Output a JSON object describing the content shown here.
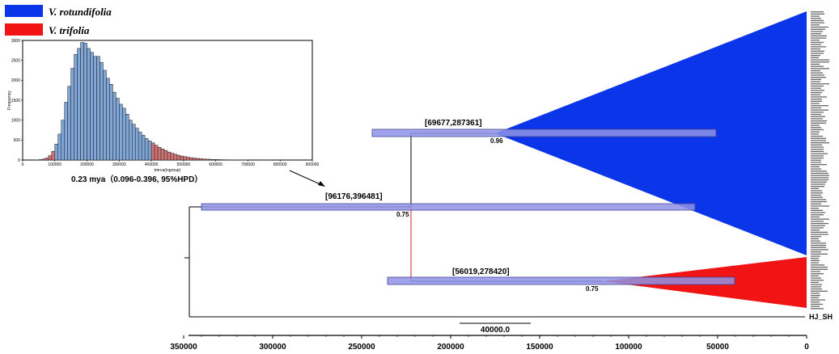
{
  "legend": [
    {
      "label": "V. rotundifolia",
      "color": "#0b35e8"
    },
    {
      "label": "V. trifolia",
      "color": "#f01414"
    }
  ],
  "inset": {
    "ylabel": "Frequency",
    "xlabel": "tmrca(ingroup)",
    "y_ticks": [
      "0",
      "500",
      "1000",
      "1500",
      "2000",
      "2500",
      "3000"
    ],
    "x_ticks": [
      "0",
      "100000",
      "200000",
      "300000",
      "400000",
      "500000",
      "600000",
      "700000",
      "800000",
      "900000"
    ],
    "caption": "0.23 mya（0.096-0.396, 95%HPD）",
    "colors": {
      "in_hpd": "#7fa6d6",
      "out_hpd": "#d27474"
    }
  },
  "chart_data": {
    "type": "bar",
    "xlabel": "tmrca(ingroup)",
    "ylabel": "Frequency",
    "xlim": [
      0,
      900000
    ],
    "ylim": [
      0,
      3000
    ],
    "bin_width": 10000,
    "hpd_interval": [
      96000,
      396000
    ],
    "bins": [
      [
        40000,
        5
      ],
      [
        50000,
        10
      ],
      [
        60000,
        25
      ],
      [
        70000,
        50
      ],
      [
        80000,
        110
      ],
      [
        90000,
        220
      ],
      [
        100000,
        400
      ],
      [
        110000,
        650
      ],
      [
        120000,
        1000
      ],
      [
        130000,
        1450
      ],
      [
        140000,
        1850
      ],
      [
        150000,
        2300
      ],
      [
        160000,
        2650
      ],
      [
        170000,
        2800
      ],
      [
        180000,
        2950
      ],
      [
        190000,
        2930
      ],
      [
        200000,
        2800
      ],
      [
        210000,
        2700
      ],
      [
        220000,
        2600
      ],
      [
        230000,
        2600
      ],
      [
        240000,
        2450
      ],
      [
        250000,
        2250
      ],
      [
        260000,
        2050
      ],
      [
        270000,
        1900
      ],
      [
        280000,
        1700
      ],
      [
        290000,
        1550
      ],
      [
        300000,
        1400
      ],
      [
        310000,
        1300
      ],
      [
        320000,
        1150
      ],
      [
        330000,
        1000
      ],
      [
        340000,
        900
      ],
      [
        350000,
        800
      ],
      [
        360000,
        700
      ],
      [
        370000,
        620
      ],
      [
        380000,
        540
      ],
      [
        390000,
        480
      ],
      [
        400000,
        430
      ],
      [
        410000,
        370
      ],
      [
        420000,
        320
      ],
      [
        430000,
        280
      ],
      [
        440000,
        240
      ],
      [
        450000,
        200
      ],
      [
        460000,
        170
      ],
      [
        470000,
        145
      ],
      [
        480000,
        120
      ],
      [
        490000,
        100
      ],
      [
        500000,
        85
      ],
      [
        510000,
        70
      ],
      [
        520000,
        58
      ],
      [
        530000,
        48
      ],
      [
        540000,
        40
      ],
      [
        550000,
        32
      ],
      [
        560000,
        26
      ],
      [
        570000,
        21
      ],
      [
        580000,
        17
      ],
      [
        590000,
        14
      ],
      [
        600000,
        11
      ],
      [
        610000,
        9
      ],
      [
        620000,
        7
      ],
      [
        630000,
        6
      ],
      [
        640000,
        5
      ],
      [
        650000,
        4
      ],
      [
        660000,
        3
      ],
      [
        670000,
        3
      ],
      [
        680000,
        2
      ],
      [
        690000,
        2
      ],
      [
        700000,
        1
      ],
      [
        720000,
        1
      ],
      [
        750000,
        1
      ]
    ]
  },
  "tree": {
    "node_labels": [
      {
        "interval": "[69677,287361]",
        "support": "0.96"
      },
      {
        "interval": "[96176,396481]",
        "support": "0.75"
      },
      {
        "interval": "[56019,278420]",
        "support": "0.75"
      }
    ],
    "outgroup_label": "HJ_SH",
    "scale_bar_label": "40000.0",
    "axis_ticks": [
      "350000",
      "300000",
      "250000",
      "200000",
      "150000",
      "100000",
      "50000",
      "0"
    ],
    "colors": {
      "clade_blue": "#0b35e8",
      "clade_red": "#f01414",
      "hpd_bar": "#8f93e6",
      "stem_red": "#d62020"
    }
  }
}
